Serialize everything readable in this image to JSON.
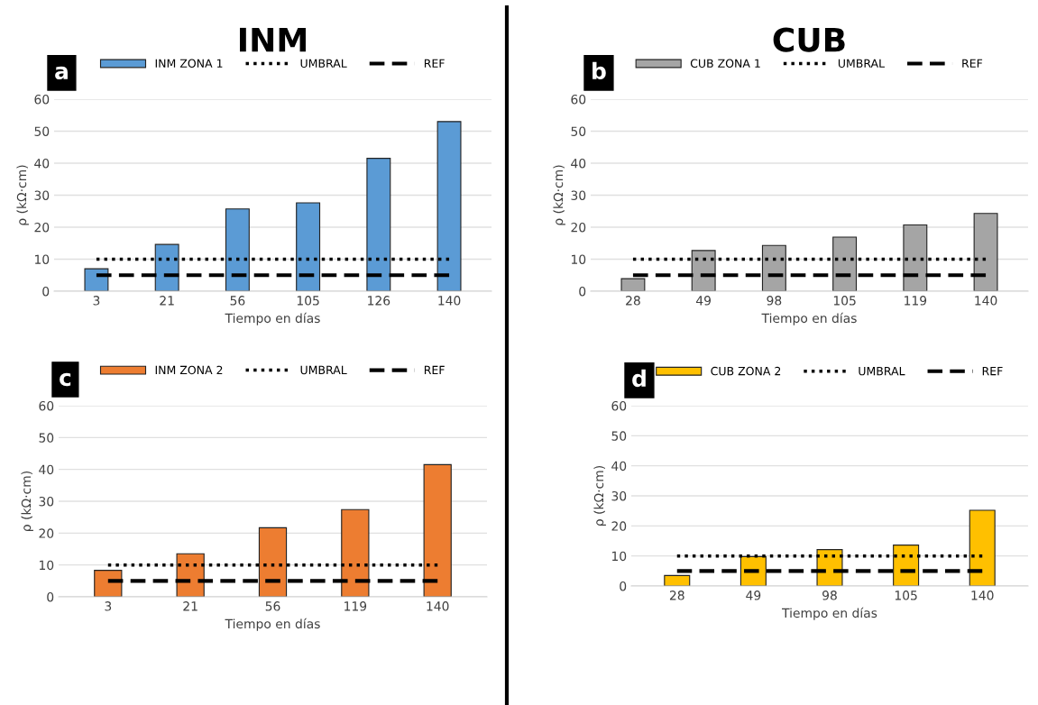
{
  "chart_data": [
    {
      "type": "bar",
      "title": "INM",
      "annotations": [
        "a"
      ],
      "xlabel": "Tiempo en días",
      "ylabel": "ρ (kΩ·cm)",
      "categories": [
        "3",
        "21",
        "56",
        "105",
        "126",
        "140"
      ],
      "ylim": [
        0,
        60
      ],
      "yticks": [
        0,
        10,
        20,
        30,
        40,
        50,
        60
      ],
      "grid": "y",
      "legend": "top",
      "series": [
        {
          "name": "INM ZONA 1",
          "type": "bar",
          "color": "#5b9bd5",
          "values": [
            7,
            14.6,
            25.7,
            27.6,
            41.5,
            53
          ]
        },
        {
          "name": "UMBRAL",
          "type": "line",
          "color": "#000000",
          "line_style": "dotted",
          "values": [
            10,
            10,
            10,
            10,
            10,
            10
          ]
        },
        {
          "name": "REF",
          "type": "line",
          "color": "#000000",
          "line_style": "dashed",
          "values": [
            5,
            5,
            5,
            5,
            5,
            5
          ]
        }
      ]
    },
    {
      "type": "bar",
      "title": "CUB",
      "annotations": [
        "b"
      ],
      "xlabel": "Tiempo en días",
      "ylabel": "ρ (kΩ·cm)",
      "categories": [
        "28",
        "49",
        "98",
        "105",
        "119",
        "140"
      ],
      "ylim": [
        0,
        60
      ],
      "yticks": [
        0,
        10,
        20,
        30,
        40,
        50,
        60
      ],
      "grid": "y",
      "legend": "top",
      "series": [
        {
          "name": "CUB ZONA 1",
          "type": "bar",
          "color": "#a5a5a5",
          "values": [
            3.9,
            12.7,
            14.3,
            16.9,
            20.7,
            24.3
          ]
        },
        {
          "name": "UMBRAL",
          "type": "line",
          "color": "#000000",
          "line_style": "dotted",
          "values": [
            10,
            10,
            10,
            10,
            10,
            10
          ]
        },
        {
          "name": "REF",
          "type": "line",
          "color": "#000000",
          "line_style": "dashed",
          "values": [
            5,
            5,
            5,
            5,
            5,
            5
          ]
        }
      ]
    },
    {
      "type": "bar",
      "annotations": [
        "c"
      ],
      "xlabel": "Tiempo en días",
      "ylabel": "ρ (kΩ·cm)",
      "categories": [
        "3",
        "21",
        "56",
        "119",
        "140"
      ],
      "ylim": [
        0,
        60
      ],
      "yticks": [
        0,
        10,
        20,
        30,
        40,
        50,
        60
      ],
      "grid": "y",
      "legend": "top",
      "series": [
        {
          "name": "INM ZONA 2",
          "type": "bar",
          "color": "#ed7d31",
          "values": [
            8.3,
            13.5,
            21.7,
            27.4,
            41.5
          ]
        },
        {
          "name": "UMBRAL",
          "type": "line",
          "color": "#000000",
          "line_style": "dotted",
          "values": [
            10,
            10,
            10,
            10,
            10
          ]
        },
        {
          "name": "REF",
          "type": "line",
          "color": "#000000",
          "line_style": "dashed",
          "values": [
            5,
            5,
            5,
            5,
            5
          ]
        }
      ]
    },
    {
      "type": "bar",
      "annotations": [
        "d"
      ],
      "xlabel": "Tiempo en días",
      "ylabel": "ρ (kΩ·cm)",
      "categories": [
        "28",
        "49",
        "98",
        "105",
        "140"
      ],
      "ylim": [
        0,
        60
      ],
      "yticks": [
        0,
        10,
        20,
        30,
        40,
        50,
        60
      ],
      "grid": "y",
      "legend": "top",
      "series": [
        {
          "name": "CUB ZONA 2",
          "type": "bar",
          "color": "#ffc000",
          "values": [
            3.5,
            9.8,
            12.1,
            13.6,
            25.2
          ]
        },
        {
          "name": "UMBRAL",
          "type": "line",
          "color": "#000000",
          "line_style": "dotted",
          "values": [
            10,
            10,
            10,
            10,
            10
          ]
        },
        {
          "name": "REF",
          "type": "line",
          "color": "#000000",
          "line_style": "dashed",
          "values": [
            5,
            5,
            5,
            5,
            5
          ]
        }
      ]
    }
  ]
}
